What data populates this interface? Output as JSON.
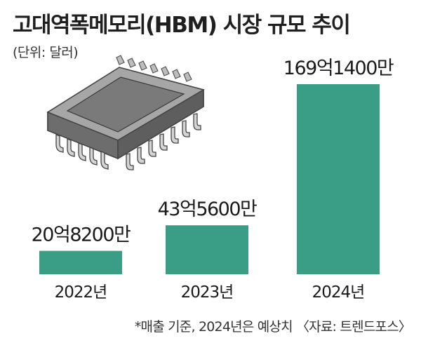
{
  "title": "고대역폭메모리(HBM) 시장 규모 추이",
  "subtitle": "(단위: 달러)",
  "footnote": "*매출 기준, 2024년은 예상치 〈자료: 트렌드포스〉",
  "colors": {
    "bar": "#3a9d86",
    "chip_body": "#9a9a9a",
    "chip_top": "#6f6f6f"
  },
  "icons": {
    "illustration": "memory-chip-icon"
  },
  "chart_data": {
    "type": "bar",
    "title": "고대역폭메모리(HBM) 시장 규모 추이",
    "unit": "달러",
    "categories": [
      "2022년",
      "2023년",
      "2024년"
    ],
    "values": [
      2082000000,
      4356000000,
      16914000000
    ],
    "value_labels": [
      "20억8200만",
      "43억5600만",
      "169억1400만"
    ],
    "grid": false,
    "legend": "none"
  }
}
